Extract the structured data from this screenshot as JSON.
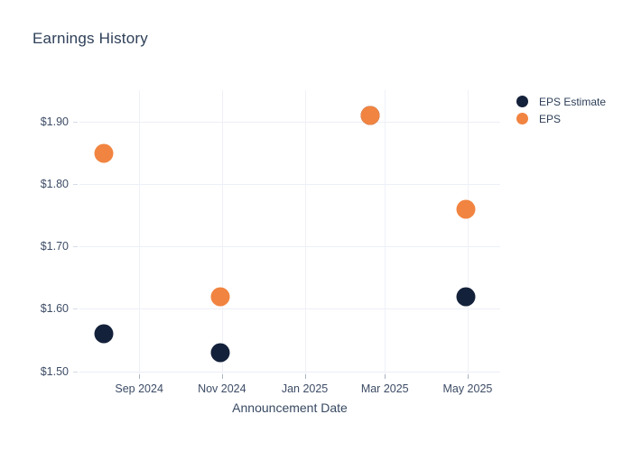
{
  "title": "Earnings History",
  "colors": {
    "eps_estimate": "#14213a",
    "eps": "#f18440",
    "title_text": "#2e3f58",
    "axis_text": "#3d4c66",
    "gridline": "#eceff6",
    "background": "#ffffff"
  },
  "legend": {
    "items": [
      {
        "label": "EPS Estimate",
        "color": "#14213a"
      },
      {
        "label": "EPS",
        "color": "#f18440"
      }
    ]
  },
  "chart_data": {
    "type": "scatter",
    "title": "Earnings History",
    "xlabel": "Announcement Date",
    "ylabel": "",
    "grid": true,
    "legend_position": "right",
    "x_range": [
      "2024-07-19",
      "2025-05-25"
    ],
    "y_range": [
      1.495,
      1.9505
    ],
    "x_ticks": [
      {
        "date": "2024-09-01",
        "label": "Sep 2024"
      },
      {
        "date": "2024-11-01",
        "label": "Nov 2024"
      },
      {
        "date": "2025-01-01",
        "label": "Jan 2025"
      },
      {
        "date": "2025-03-01",
        "label": "Mar 2025"
      },
      {
        "date": "2025-05-01",
        "label": "May 2025"
      }
    ],
    "y_ticks": [
      {
        "value": 1.5,
        "label": "$1.50"
      },
      {
        "value": 1.6,
        "label": "$1.60"
      },
      {
        "value": 1.7,
        "label": "$1.70"
      },
      {
        "value": 1.8,
        "label": "$1.80"
      },
      {
        "value": 1.9,
        "label": "$1.90"
      }
    ],
    "series": [
      {
        "name": "EPS Estimate",
        "color": "#14213a",
        "points": [
          {
            "date": "2024-08-06",
            "value": 1.56
          },
          {
            "date": "2024-10-31",
            "value": 1.53
          },
          {
            "date": "2025-02-18",
            "value": 1.91
          },
          {
            "date": "2025-04-30",
            "value": 1.62
          }
        ]
      },
      {
        "name": "EPS",
        "color": "#f18440",
        "points": [
          {
            "date": "2024-08-06",
            "value": 1.85
          },
          {
            "date": "2024-10-31",
            "value": 1.62
          },
          {
            "date": "2025-02-18",
            "value": 1.91
          },
          {
            "date": "2025-04-30",
            "value": 1.76
          }
        ]
      }
    ]
  }
}
